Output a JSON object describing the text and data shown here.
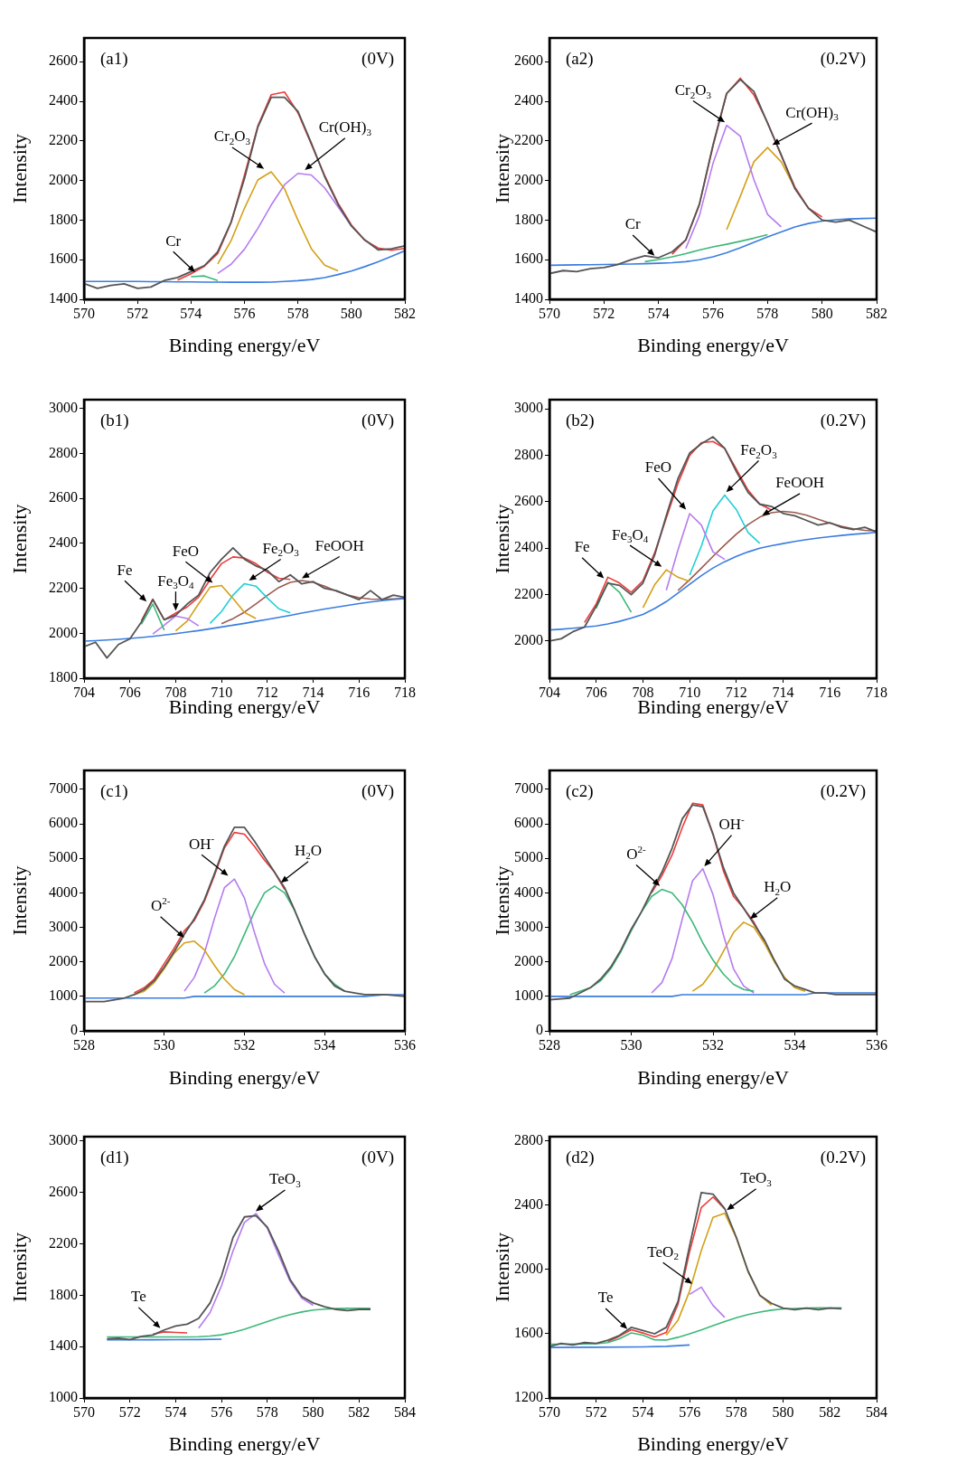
{
  "chart_data": [
    {
      "type": "line",
      "title": "(a1)",
      "subtitle": "(0V)",
      "xlabel": "Binding energy/eV",
      "ylabel": "Intensity",
      "xlim": [
        570,
        582
      ],
      "xticks": [
        570,
        572,
        574,
        576,
        578,
        580,
        582
      ],
      "ylim": [
        1400,
        2720
      ],
      "yticks": [
        1400,
        1600,
        1800,
        2000,
        2200,
        2400,
        2600
      ],
      "x": [
        570,
        570.5,
        571,
        571.5,
        572,
        572.5,
        573,
        573.5,
        574,
        574.5,
        575,
        575.5,
        576,
        576.5,
        577,
        577.5,
        578,
        578.5,
        579,
        579.5,
        580,
        580.5,
        581,
        581.5,
        582
      ],
      "series": [
        {
          "color": "#555555",
          "values": [
            1480,
            1455,
            1470,
            1478,
            1455,
            1462,
            1495,
            1510,
            1540,
            1570,
            1640,
            1790,
            2010,
            2270,
            2420,
            2420,
            2350,
            2190,
            2020,
            1880,
            1770,
            1700,
            1650,
            1655,
            1670
          ]
        },
        {
          "color": "#3a7de0",
          "values": [
            1490,
            1490,
            1490,
            1490,
            1490,
            1489,
            1489,
            1488,
            1488,
            1487,
            1487,
            1486,
            1486,
            1486,
            1487,
            1490,
            1494,
            1500,
            1510,
            1525,
            1543,
            1565,
            1590,
            1617,
            1645
          ]
        },
        {
          "color": "#3cb878",
          "values": [
            null,
            null,
            null,
            null,
            null,
            null,
            null,
            null,
            1514,
            1518,
            1495,
            null,
            null,
            null,
            null,
            null,
            null,
            null,
            null,
            null,
            null,
            null,
            null,
            null,
            null
          ]
        },
        {
          "color": "#d4a017",
          "values": [
            null,
            null,
            null,
            null,
            null,
            null,
            null,
            null,
            null,
            null,
            1579,
            1696,
            1860,
            2003,
            2044,
            1958,
            1800,
            1656,
            1572,
            1544,
            null,
            null,
            null,
            null,
            null
          ]
        },
        {
          "color": "#b57bef",
          "values": [
            null,
            null,
            null,
            null,
            null,
            null,
            null,
            null,
            null,
            null,
            1531,
            1577,
            1653,
            1758,
            1876,
            1979,
            2036,
            2028,
            1963,
            1867,
            1771,
            null,
            null,
            null,
            null
          ]
        },
        {
          "color": "#ee3b3b",
          "values": [
            null,
            null,
            null,
            null,
            null,
            null,
            null,
            1497,
            1529,
            1567,
            1631,
            1787,
            2027,
            2275,
            2433,
            2447,
            2342,
            2184,
            2025,
            1886,
            1776,
            1698,
            1659,
            1648,
            1657
          ]
        }
      ],
      "annotations": [
        {
          "text": "Cr",
          "x": 574.3,
          "y": 1518
        },
        {
          "text": "Cr$_{2}$O$_{3}$",
          "x": 576.9,
          "y": 2044
        },
        {
          "text": "Cr(OH)$_{3}$",
          "x": 578.1,
          "y": 2036
        }
      ]
    },
    {
      "type": "line",
      "title": "(a2)",
      "subtitle": "(0.2V)",
      "xlabel": "Binding energy/eV",
      "ylabel": "Intensity",
      "xlim": [
        570,
        582
      ],
      "xticks": [
        570,
        572,
        574,
        576,
        578,
        580,
        582
      ],
      "ylim": [
        1400,
        2720
      ],
      "yticks": [
        1400,
        1600,
        1800,
        2000,
        2200,
        2400,
        2600
      ],
      "x": [
        570,
        570.5,
        571,
        571.5,
        572,
        572.5,
        573,
        573.5,
        574,
        574.5,
        575,
        575.5,
        576,
        576.5,
        577,
        577.5,
        578,
        578.5,
        579,
        579.5,
        580,
        580.5,
        581,
        581.5,
        582
      ],
      "series": [
        {
          "color": "#555555",
          "values": [
            1530,
            1545,
            1540,
            1555,
            1560,
            1575,
            1600,
            1620,
            1610,
            1640,
            1700,
            1880,
            2180,
            2440,
            2510,
            2450,
            2290,
            2130,
            1960,
            1860,
            1800,
            1790,
            1800,
            1770,
            1740
          ]
        },
        {
          "color": "#3a7de0",
          "values": [
            1572,
            1573,
            1574,
            1575,
            1576,
            1577,
            1578,
            1580,
            1582,
            1585,
            1590,
            1600,
            1615,
            1635,
            1660,
            1688,
            1715,
            1740,
            1765,
            1783,
            1795,
            1802,
            1806,
            1808,
            1810
          ]
        },
        {
          "color": "#3cb878",
          "values": [
            null,
            null,
            null,
            null,
            null,
            null,
            null,
            1590,
            1601,
            1615,
            1631,
            1649,
            1665,
            1678,
            1693,
            1709,
            1727,
            null,
            null,
            null,
            null,
            null,
            null,
            null,
            null
          ]
        },
        {
          "color": "#b57bef",
          "values": [
            null,
            null,
            null,
            null,
            null,
            null,
            null,
            null,
            null,
            null,
            1657,
            1822,
            2087,
            2279,
            2224,
            2004,
            1829,
            1766,
            null,
            null,
            null,
            null,
            null,
            null,
            null
          ]
        },
        {
          "color": "#d4a017",
          "values": [
            null,
            null,
            null,
            null,
            null,
            null,
            null,
            null,
            null,
            null,
            null,
            null,
            null,
            1752,
            1920,
            2095,
            2167,
            2095,
            1962,
            null,
            null,
            null,
            null,
            null,
            null
          ]
        },
        {
          "color": "#ee3b3b",
          "values": [
            null,
            null,
            null,
            null,
            null,
            null,
            null,
            null,
            null,
            1628,
            1699,
            1879,
            2174,
            2439,
            2517,
            2432,
            2293,
            2127,
            1968,
            1860,
            1816,
            null,
            null,
            null,
            null
          ]
        }
      ],
      "annotations": [
        {
          "text": "Cr",
          "x": 574,
          "y": 1601
        },
        {
          "text": "Cr$_{2}$O$_{3}$",
          "x": 576.6,
          "y": 2279
        },
        {
          "text": "Cr(OH)$_{3}$",
          "x": 578,
          "y": 2167
        }
      ]
    },
    {
      "type": "line",
      "title": "(b1)",
      "subtitle": "(0V)",
      "xlabel": "Binding energy/eV",
      "ylabel": "Intensity",
      "xlim": [
        704,
        718
      ],
      "xticks": [
        704,
        706,
        708,
        710,
        712,
        714,
        716,
        718
      ],
      "ylim": [
        1800,
        3040
      ],
      "yticks": [
        1800,
        2000,
        2200,
        2400,
        2600,
        2800,
        3000
      ],
      "x": [
        704,
        704.5,
        705,
        705.5,
        706,
        706.5,
        707,
        707.5,
        708,
        708.5,
        709,
        709.5,
        710,
        710.5,
        711,
        711.5,
        712,
        712.5,
        713,
        713.5,
        714,
        714.5,
        715,
        715.5,
        716,
        716.5,
        717,
        717.5,
        718
      ],
      "series": [
        {
          "color": "#555555",
          "values": [
            1940,
            1960,
            1890,
            1950,
            1975,
            2050,
            2150,
            2060,
            2080,
            2130,
            2170,
            2270,
            2330,
            2380,
            2330,
            2300,
            2280,
            2230,
            2260,
            2220,
            2230,
            2200,
            2190,
            2170,
            2150,
            2190,
            2150,
            2170,
            2160
          ]
        },
        {
          "color": "#3a7de0",
          "values": [
            1965,
            1967,
            1970,
            1973,
            1977,
            1981,
            1986,
            1992,
            1998,
            2005,
            2012,
            2020,
            2028,
            2036,
            2044,
            2053,
            2062,
            2071,
            2080,
            2090,
            2099,
            2108,
            2116,
            2124,
            2132,
            2139,
            2145,
            2150,
            2155
          ]
        },
        {
          "color": "#3cb878",
          "values": [
            null,
            null,
            null,
            null,
            null,
            2040,
            2130,
            2014,
            null,
            null,
            null,
            null,
            null,
            null,
            null,
            null,
            null,
            null,
            null,
            null,
            null,
            null,
            null,
            null,
            null,
            null,
            null,
            null,
            null
          ]
        },
        {
          "color": "#b57bef",
          "values": [
            null,
            null,
            null,
            null,
            null,
            null,
            1997,
            2036,
            2077,
            2066,
            2033,
            null,
            null,
            null,
            null,
            null,
            null,
            null,
            null,
            null,
            null,
            null,
            null,
            null,
            null,
            null,
            null,
            null,
            null
          ]
        },
        {
          "color": "#d4a017",
          "values": [
            null,
            null,
            null,
            null,
            null,
            null,
            null,
            null,
            2011,
            2054,
            2131,
            2205,
            2213,
            2155,
            2093,
            2066,
            null,
            null,
            null,
            null,
            null,
            null,
            null,
            null,
            null,
            null,
            null,
            null,
            null
          ]
        },
        {
          "color": "#22cfd8",
          "values": [
            null,
            null,
            null,
            null,
            null,
            null,
            null,
            null,
            null,
            null,
            null,
            2044,
            2097,
            2170,
            2221,
            2210,
            2157,
            2109,
            2091,
            null,
            null,
            null,
            null,
            null,
            null,
            null,
            null,
            null,
            null
          ]
        },
        {
          "color": "#9b5a50",
          "values": [
            null,
            null,
            null,
            null,
            null,
            null,
            null,
            null,
            null,
            null,
            null,
            null,
            2043,
            2065,
            2094,
            2131,
            2169,
            2204,
            2227,
            2235,
            2227,
            2210,
            2188,
            2170,
            2158,
            2152,
            2151,
            2153,
            2156
          ]
        },
        {
          "color": "#ee3b3b",
          "values": [
            null,
            null,
            null,
            null,
            null,
            2055,
            2152,
            2060,
            2090,
            2117,
            2161,
            2239,
            2310,
            2340,
            2335,
            2310,
            2272,
            2245,
            2240,
            null,
            null,
            null,
            null,
            null,
            null,
            null,
            null,
            null,
            null
          ]
        }
      ],
      "annotations": [
        {
          "text": "Fe",
          "x": 706.9,
          "y": 2125
        },
        {
          "text": "Fe$_{3}$O$_{4}$",
          "x": 708,
          "y": 2077
        },
        {
          "text": "FeO",
          "x": 709.8,
          "y": 2210
        },
        {
          "text": "Fe$_{2}$O$_{3}$",
          "x": 711,
          "y": 2221
        },
        {
          "text": "FeOOH",
          "x": 713.3,
          "y": 2233
        }
      ]
    },
    {
      "type": "line",
      "title": "(b2)",
      "subtitle": "(0.2V)",
      "xlabel": "Binding energy/eV",
      "ylabel": "Intensity",
      "xlim": [
        704,
        718
      ],
      "xticks": [
        704,
        706,
        708,
        710,
        712,
        714,
        716,
        718
      ],
      "ylim": [
        1840,
        3040
      ],
      "yticks": [
        2000,
        2200,
        2400,
        2600,
        2800,
        3000
      ],
      "x": [
        704,
        704.5,
        705,
        705.5,
        706,
        706.5,
        707,
        707.5,
        708,
        708.5,
        709,
        709.5,
        710,
        710.5,
        711,
        711.5,
        712,
        712.5,
        713,
        713.5,
        714,
        714.5,
        715,
        715.5,
        716,
        716.5,
        717,
        717.5,
        718
      ],
      "series": [
        {
          "color": "#555555",
          "values": [
            2000,
            2010,
            2040,
            2060,
            2150,
            2250,
            2240,
            2200,
            2250,
            2370,
            2540,
            2700,
            2810,
            2850,
            2880,
            2830,
            2730,
            2640,
            2590,
            2580,
            2550,
            2540,
            2520,
            2500,
            2510,
            2490,
            2480,
            2490,
            2470
          ]
        },
        {
          "color": "#3a7de0",
          "values": [
            2048,
            2051,
            2055,
            2060,
            2065,
            2074,
            2085,
            2099,
            2115,
            2140,
            2170,
            2207,
            2245,
            2282,
            2315,
            2342,
            2365,
            2384,
            2400,
            2411,
            2420,
            2429,
            2437,
            2444,
            2450,
            2455,
            2460,
            2464,
            2468
          ]
        },
        {
          "color": "#3cb878",
          "values": [
            null,
            null,
            null,
            null,
            2141,
            2254,
            2210,
            2124,
            null,
            null,
            null,
            null,
            null,
            null,
            null,
            null,
            null,
            null,
            null,
            null,
            null,
            null,
            null,
            null,
            null,
            null,
            null,
            null,
            null
          ]
        },
        {
          "color": "#d4a017",
          "values": [
            null,
            null,
            null,
            null,
            null,
            null,
            null,
            null,
            2143,
            2242,
            2307,
            2275,
            2257,
            null,
            null,
            null,
            null,
            null,
            null,
            null,
            null,
            null,
            null,
            null,
            null,
            null,
            null,
            null,
            null
          ]
        },
        {
          "color": "#b57bef",
          "values": [
            null,
            null,
            null,
            null,
            null,
            null,
            null,
            null,
            null,
            null,
            2219,
            2392,
            2549,
            2500,
            2384,
            2352,
            null,
            null,
            null,
            null,
            null,
            null,
            null,
            null,
            null,
            null,
            null,
            null,
            null
          ]
        },
        {
          "color": "#22cfd8",
          "values": [
            null,
            null,
            null,
            null,
            null,
            null,
            null,
            null,
            null,
            null,
            null,
            null,
            2284,
            2409,
            2561,
            2629,
            2566,
            2468,
            2421,
            null,
            null,
            null,
            null,
            null,
            null,
            null,
            null,
            null,
            null
          ]
        },
        {
          "color": "#9b5a50",
          "values": [
            null,
            null,
            null,
            null,
            null,
            null,
            null,
            null,
            null,
            null,
            null,
            2218,
            2264,
            2314,
            2365,
            2414,
            2461,
            2502,
            2534,
            2553,
            2559,
            2554,
            2542,
            2525,
            2508,
            2494,
            2484,
            2477,
            2475
          ]
        },
        {
          "color": "#ee3b3b",
          "values": [
            null,
            null,
            null,
            2080,
            2160,
            2275,
            2250,
            2210,
            2260,
            2380,
            2530,
            2680,
            2800,
            2855,
            2860,
            2830,
            2740,
            2650,
            2590,
            2565,
            null,
            null,
            null,
            null,
            null,
            null,
            null,
            null,
            null
          ]
        }
      ],
      "annotations": [
        {
          "text": "Fe",
          "x": 706.5,
          "y": 2254
        },
        {
          "text": "Fe$_{3}$O$_{4}$",
          "x": 709,
          "y": 2307
        },
        {
          "text": "FeO",
          "x": 710,
          "y": 2549
        },
        {
          "text": "Fe$_{2}$O$_{3}$",
          "x": 711.4,
          "y": 2625
        },
        {
          "text": "FeOOH",
          "x": 712.9,
          "y": 2530
        }
      ]
    },
    {
      "type": "line",
      "title": "(c1)",
      "subtitle": "(0V)",
      "xlabel": "Binding energy/eV",
      "ylabel": "Intensity",
      "xlim": [
        528,
        536
      ],
      "xticks": [
        528,
        530,
        532,
        534,
        536
      ],
      "ylim": [
        0,
        7550
      ],
      "yticks": [
        0,
        1000,
        2000,
        3000,
        4000,
        5000,
        6000,
        7000
      ],
      "x": [
        528,
        528.5,
        529,
        529.25,
        529.5,
        529.75,
        530,
        530.25,
        530.5,
        530.75,
        531,
        531.25,
        531.5,
        531.75,
        532,
        532.25,
        532.5,
        532.75,
        533,
        533.25,
        533.5,
        533.75,
        534,
        534.25,
        534.5,
        534.75,
        535,
        535.5,
        536
      ],
      "series": [
        {
          "color": "#555555",
          "values": [
            850,
            850,
            950,
            1050,
            1200,
            1450,
            1850,
            2300,
            2800,
            3250,
            3800,
            4550,
            5350,
            5900,
            5900,
            5500,
            5050,
            4600,
            4150,
            3500,
            2800,
            2150,
            1650,
            1300,
            1150,
            1100,
            1050,
            1050,
            1000
          ]
        },
        {
          "color": "#3a7de0",
          "values": [
            950,
            950,
            950,
            950,
            950,
            950,
            950,
            950,
            950,
            1000,
            1000,
            1000,
            1000,
            1000,
            1000,
            1000,
            1000,
            1000,
            1000,
            1000,
            1000,
            1000,
            1000,
            1000,
            1000,
            1000,
            1000,
            1050,
            1050
          ]
        },
        {
          "color": "#d4a017",
          "values": [
            null,
            null,
            null,
            1050,
            1150,
            1400,
            1800,
            2250,
            2550,
            2600,
            2350,
            1900,
            1500,
            1200,
            1050,
            null,
            null,
            null,
            null,
            null,
            null,
            null,
            null,
            null,
            null,
            null,
            null,
            null,
            null
          ]
        },
        {
          "color": "#b57bef",
          "values": [
            null,
            null,
            null,
            null,
            null,
            null,
            null,
            null,
            1150,
            1550,
            2250,
            3250,
            4150,
            4400,
            3850,
            2850,
            1950,
            1350,
            1100,
            null,
            null,
            null,
            null,
            null,
            null,
            null,
            null,
            null,
            null
          ]
        },
        {
          "color": "#3cb878",
          "values": [
            null,
            null,
            null,
            null,
            null,
            null,
            null,
            null,
            null,
            null,
            1100,
            1300,
            1650,
            2150,
            2800,
            3450,
            4000,
            4200,
            4000,
            3500,
            2800,
            2150,
            1650,
            1350,
            1150,
            null,
            null,
            null,
            null
          ]
        },
        {
          "color": "#ee3b3b",
          "values": [
            null,
            null,
            null,
            1100,
            1250,
            1500,
            1950,
            2400,
            2900,
            3200,
            3750,
            4500,
            5300,
            5750,
            5700,
            5350,
            4950,
            4600,
            4100,
            null,
            null,
            null,
            null,
            null,
            null,
            null,
            null,
            null,
            null
          ]
        }
      ],
      "annotations": [
        {
          "text": "O$^{2-}$",
          "x": 530.6,
          "y": 2600
        },
        {
          "text": "OH$^{-}$",
          "x": 531.7,
          "y": 4400
        },
        {
          "text": "H$_{2}$O",
          "x": 532.8,
          "y": 4200
        }
      ]
    },
    {
      "type": "line",
      "title": "(c2)",
      "subtitle": "(0.2V)",
      "xlabel": "Binding energy/eV",
      "ylabel": "Intensity",
      "xlim": [
        528,
        536
      ],
      "xticks": [
        528,
        530,
        532,
        534,
        536
      ],
      "ylim": [
        0,
        7550
      ],
      "yticks": [
        0,
        1000,
        2000,
        3000,
        4000,
        5000,
        6000,
        7000
      ],
      "x": [
        528,
        528.5,
        529,
        529.25,
        529.5,
        529.75,
        530,
        530.25,
        530.5,
        530.75,
        531,
        531.25,
        531.5,
        531.75,
        532,
        532.25,
        532.5,
        532.75,
        533,
        533.25,
        533.5,
        533.75,
        534,
        534.25,
        534.5,
        534.75,
        535,
        535.5,
        536
      ],
      "series": [
        {
          "color": "#555555",
          "values": [
            900,
            950,
            1250,
            1500,
            1850,
            2350,
            2950,
            3450,
            4050,
            4600,
            5300,
            6150,
            6550,
            6500,
            5700,
            4750,
            4000,
            3550,
            3100,
            2650,
            2050,
            1500,
            1300,
            1200,
            1100,
            1100,
            1050,
            1050,
            1050
          ]
        },
        {
          "color": "#3a7de0",
          "values": [
            1000,
            1000,
            1000,
            1000,
            1000,
            1000,
            1000,
            1000,
            1000,
            1000,
            1000,
            1050,
            1050,
            1050,
            1050,
            1050,
            1050,
            1050,
            1050,
            1050,
            1050,
            1050,
            1050,
            1050,
            1100,
            1100,
            1100,
            1100,
            1100
          ]
        },
        {
          "color": "#3cb878",
          "values": [
            null,
            1050,
            1250,
            1450,
            1800,
            2300,
            2900,
            3450,
            3900,
            4100,
            4000,
            3650,
            3150,
            2550,
            2050,
            1650,
            1350,
            1200,
            1150,
            null,
            null,
            null,
            null,
            null,
            null,
            null,
            null,
            null,
            null
          ]
        },
        {
          "color": "#b57bef",
          "values": [
            null,
            null,
            null,
            null,
            null,
            null,
            null,
            null,
            1100,
            1400,
            2100,
            3250,
            4350,
            4700,
            3950,
            2800,
            1800,
            1300,
            1100,
            null,
            null,
            null,
            null,
            null,
            null,
            null,
            null,
            null,
            null
          ]
        },
        {
          "color": "#d4a017",
          "values": [
            null,
            null,
            null,
            null,
            null,
            null,
            null,
            null,
            null,
            null,
            null,
            null,
            1150,
            1350,
            1750,
            2300,
            2850,
            3150,
            3000,
            2550,
            2000,
            1550,
            1250,
            1150,
            null,
            null,
            null,
            null,
            null
          ]
        },
        {
          "color": "#ee3b3b",
          "values": [
            null,
            null,
            null,
            null,
            null,
            null,
            null,
            null,
            4000,
            4500,
            5100,
            5900,
            6600,
            6550,
            5700,
            4650,
            3900,
            3550,
            3150,
            2600,
            null,
            null,
            null,
            null,
            null,
            null,
            null,
            null,
            null
          ]
        }
      ],
      "annotations": [
        {
          "text": "O$^{2-}$",
          "x": 530.8,
          "y": 4100
        },
        {
          "text": "OH$^{-}$",
          "x": 531.7,
          "y": 4650
        },
        {
          "text": "H$_{2}$O",
          "x": 532.8,
          "y": 3150
        }
      ]
    },
    {
      "type": "line",
      "title": "(d1)",
      "subtitle": "(0V)",
      "xlabel": "Binding energy/eV",
      "ylabel": "Intensity",
      "xlim": [
        570,
        584
      ],
      "xticks": [
        570,
        572,
        574,
        576,
        578,
        580,
        582,
        584
      ],
      "ylim": [
        1000,
        3035
      ],
      "yticks": [
        1000,
        1400,
        1800,
        2200,
        2600,
        3000
      ],
      "x": [
        571,
        571.5,
        572,
        572.5,
        573,
        573.5,
        574,
        574.5,
        575,
        575.5,
        576,
        576.5,
        577,
        577.5,
        578,
        578.5,
        579,
        579.5,
        580,
        580.5,
        581,
        581.5,
        582,
        582.5
      ],
      "series": [
        {
          "color": "#555555",
          "values": [
            1460,
            1465,
            1455,
            1480,
            1490,
            1530,
            1560,
            1575,
            1620,
            1740,
            1950,
            2250,
            2410,
            2420,
            2330,
            2140,
            1920,
            1790,
            1740,
            1710,
            1690,
            1680,
            1690,
            1690
          ]
        },
        {
          "color": "#3a7de0",
          "x": [
            571,
            572,
            573,
            574,
            575,
            576
          ],
          "values": [
            1452,
            1452,
            1453,
            1454,
            1455,
            1458
          ]
        },
        {
          "color": "#3cb878",
          "values": [
            1475,
            1475,
            1475,
            1475,
            1475,
            1475,
            1475,
            1475,
            1477,
            1482,
            1492,
            1510,
            1535,
            1565,
            1595,
            1625,
            1650,
            1670,
            1685,
            1692,
            1696,
            1698,
            1698,
            1698
          ]
        },
        {
          "color": "#ee3b3b",
          "values": [
            null,
            null,
            null,
            null,
            1497,
            1515,
            1511,
            1507,
            null,
            null,
            null,
            null,
            null,
            null,
            null,
            null,
            null,
            null,
            null,
            null,
            null,
            null,
            null,
            null
          ]
        },
        {
          "color": "#b57bef",
          "values": [
            null,
            null,
            null,
            null,
            null,
            null,
            null,
            null,
            1544,
            1665,
            1875,
            2144,
            2367,
            2436,
            2322,
            2108,
            1906,
            1778,
            1722,
            null,
            null,
            null,
            null,
            null
          ]
        }
      ],
      "annotations": [
        {
          "text": "Te",
          "x": 573.5,
          "y": 1515
        },
        {
          "text": "TeO$_{3}$",
          "x": 577.3,
          "y": 2430
        }
      ]
    },
    {
      "type": "line",
      "title": "(d2)",
      "subtitle": "(0.2V)",
      "xlabel": "Binding energy/eV",
      "ylabel": "Intensity",
      "xlim": [
        570,
        584
      ],
      "xticks": [
        570,
        572,
        574,
        576,
        578,
        580,
        582,
        584
      ],
      "ylim": [
        1200,
        2828
      ],
      "yticks": [
        1200,
        1600,
        2000,
        2400,
        2800
      ],
      "x": [
        570,
        570.5,
        571,
        571.5,
        572,
        572.5,
        573,
        573.5,
        574,
        574.5,
        575,
        575.5,
        576,
        576.5,
        577,
        577.5,
        578,
        578.5,
        579,
        579.5,
        580,
        580.5,
        581,
        581.5,
        582,
        582.5
      ],
      "series": [
        {
          "color": "#555555",
          "values": [
            1520,
            1540,
            1530,
            1545,
            1540,
            1560,
            1590,
            1640,
            1620,
            1600,
            1640,
            1800,
            2150,
            2480,
            2470,
            2380,
            2200,
            1990,
            1840,
            1790,
            1760,
            1750,
            1760,
            1750,
            1760,
            1755
          ]
        },
        {
          "color": "#3a7de0",
          "x": [
            570,
            572,
            574,
            575,
            576
          ],
          "values": [
            1515,
            1516,
            1518,
            1522,
            1530
          ]
        },
        {
          "color": "#3cb878",
          "values": [
            1535,
            1535,
            1536,
            1537,
            1538,
            1545,
            1569,
            1606,
            1591,
            1562,
            1561,
            1578,
            1600,
            1624,
            1650,
            1676,
            1700,
            1720,
            1735,
            1747,
            1755,
            1758,
            1760,
            1761,
            1762,
            1762
          ]
        },
        {
          "color": "#b57bef",
          "values": [
            null,
            null,
            null,
            null,
            null,
            null,
            null,
            null,
            null,
            null,
            null,
            null,
            1846,
            1891,
            1777,
            1702,
            null,
            null,
            null,
            null,
            null,
            null,
            null,
            null,
            null,
            null
          ]
        },
        {
          "color": "#ee3b3b",
          "values": [
            null,
            null,
            null,
            null,
            null,
            1550,
            1585,
            1625,
            1605,
            1580,
            1609,
            1783,
            2113,
            2387,
            2452,
            2377,
            null,
            null,
            null,
            null,
            null,
            null,
            null,
            null,
            null,
            null
          ]
        },
        {
          "color": "#d4a017",
          "values": [
            null,
            null,
            null,
            null,
            null,
            null,
            null,
            null,
            null,
            null,
            1591,
            1684,
            1867,
            2120,
            2325,
            2351,
            2196,
            1987,
            1841,
            1778,
            null,
            null,
            null,
            null,
            null,
            null
          ]
        }
      ],
      "annotations": [
        {
          "text": "Te",
          "x": 573.5,
          "y": 1606
        },
        {
          "text": "TeO$_{2}$",
          "x": 576.3,
          "y": 1891
        },
        {
          "text": "TeO$_{3}$",
          "x": 577.4,
          "y": 2351
        }
      ]
    }
  ]
}
